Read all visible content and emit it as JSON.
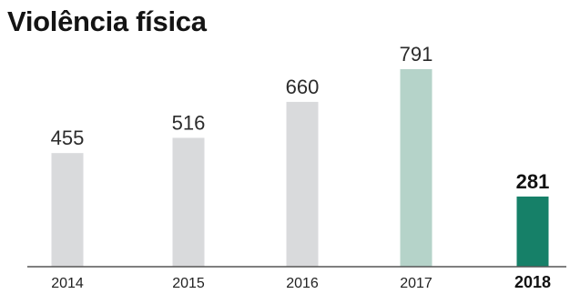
{
  "chart_data": {
    "type": "bar",
    "title": "Violência física",
    "categories": [
      "2014",
      "2015",
      "2016",
      "2017",
      "2018"
    ],
    "values": [
      455,
      516,
      660,
      791,
      281
    ],
    "value_labels": [
      "455",
      "516",
      "660",
      "791",
      "281"
    ],
    "highlight": "2018",
    "ylim": [
      0,
      791
    ],
    "grid": false,
    "legend": "none",
    "colors": {
      "default": "#d9dadc",
      "2017": "#b5d3c9",
      "2018": "#168068",
      "axis": "#555555"
    }
  }
}
